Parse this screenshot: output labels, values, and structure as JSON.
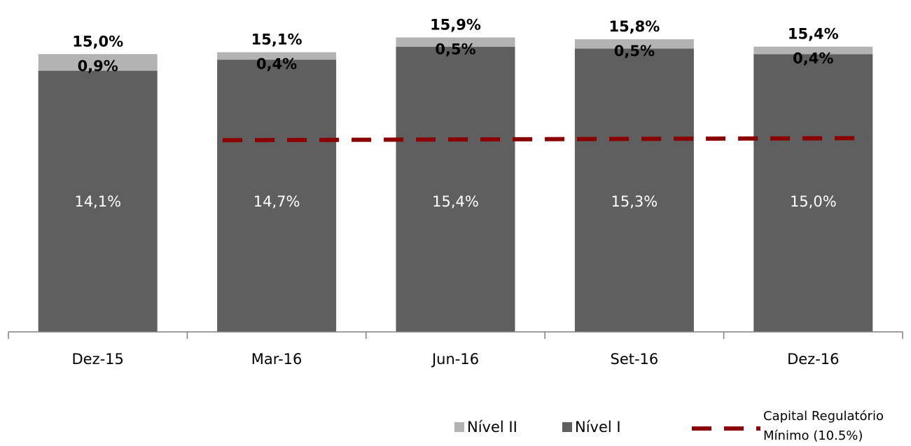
{
  "chart_data": {
    "type": "bar",
    "stacked": true,
    "categories": [
      "Dez-15",
      "Mar-16",
      "Jun-16",
      "Set-16",
      "Dez-16"
    ],
    "series": [
      {
        "name": "Nível I",
        "values": [
          14.1,
          14.7,
          15.4,
          15.3,
          15.0
        ],
        "labels": [
          "14,1%",
          "14,7%",
          "15,4%",
          "15,3%",
          "15,0%"
        ]
      },
      {
        "name": "Nível II",
        "values": [
          0.9,
          0.4,
          0.5,
          0.5,
          0.4
        ],
        "labels": [
          "0,9%",
          "0,4%",
          "0,5%",
          "0,5%",
          "0,4%"
        ]
      }
    ],
    "totals": [
      15.0,
      15.1,
      15.9,
      15.8,
      15.4
    ],
    "total_labels": [
      "15,0%",
      "15,1%",
      "15,9%",
      "15,8%",
      "15,4%"
    ],
    "line": {
      "name": "Capital Regulatório Mínimo (10.5%)",
      "name_lines": [
        "Capital Regulatório",
        "Mínimo (10.5%)"
      ],
      "value": 10.5,
      "from_category": "Mar-16",
      "to_category": "Dez-16"
    },
    "ylim": [
      0,
      16.6
    ],
    "grid": false,
    "legend_position": "bottom-right"
  },
  "colors": {
    "nivel_i": "#5f5f5f",
    "nivel_ii": "#b3b3b3",
    "line": "#8b0000",
    "axis": "#808080"
  }
}
